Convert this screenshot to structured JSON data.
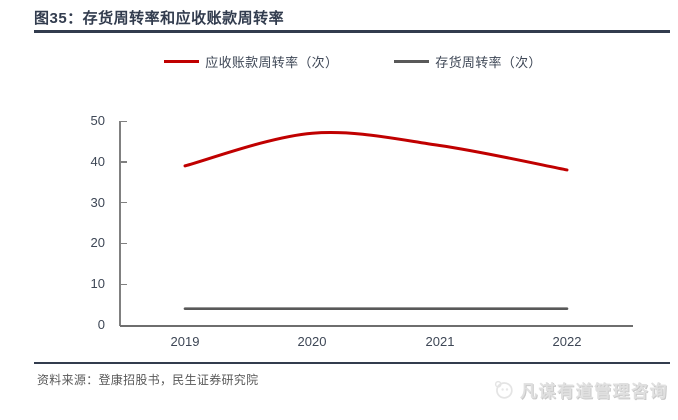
{
  "figure": {
    "title": "图35：存货周转率和应收账款周转率",
    "source": "资料来源：登康招股书，民生证券研究院"
  },
  "legend": {
    "items": [
      {
        "label": "应收账款周转率（次）",
        "color": "#C00000"
      },
      {
        "label": "存货周转率（次）",
        "color": "#595959"
      }
    ]
  },
  "chart_data": {
    "type": "line",
    "title": "存货周转率和应收账款周转率",
    "categories": [
      "2019",
      "2020",
      "2021",
      "2022"
    ],
    "series": [
      {
        "name": "应收账款周转率（次）",
        "color": "#C00000",
        "smooth": true,
        "width": 3,
        "values": [
          39,
          47,
          44,
          38
        ]
      },
      {
        "name": "存货周转率（次）",
        "color": "#595959",
        "smooth": false,
        "width": 2.6,
        "values": [
          4,
          4,
          4,
          4
        ]
      }
    ],
    "ylim": [
      0,
      50
    ],
    "yticks": [
      0,
      10,
      20,
      30,
      40,
      50
    ],
    "xlabel": "",
    "ylabel": "",
    "grid": false,
    "legend_position": "top"
  },
  "watermark": {
    "text": "凡谋有道管理咨询"
  }
}
